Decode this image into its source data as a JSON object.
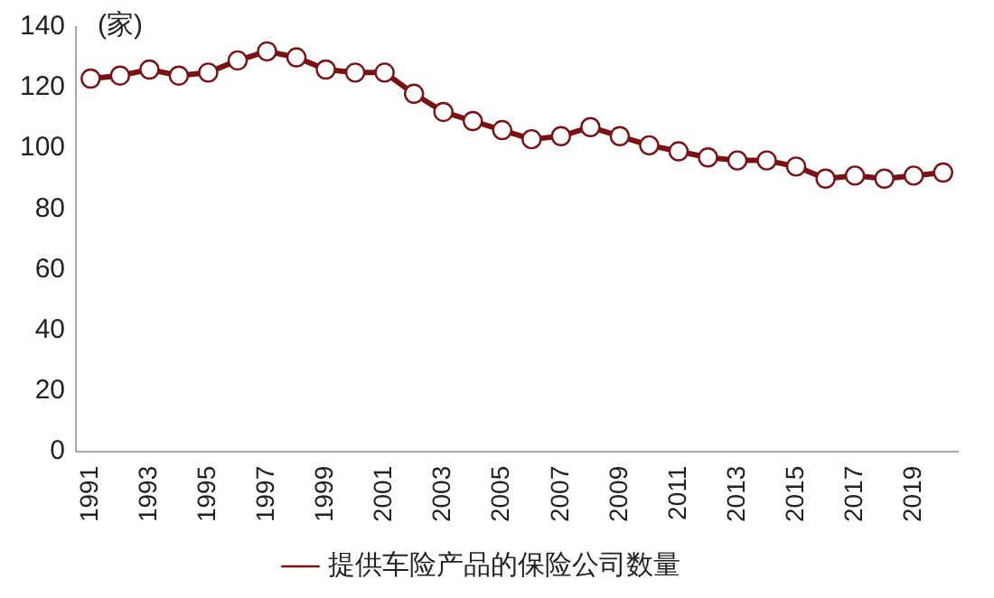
{
  "chart_data": {
    "type": "line",
    "ylabel": "(家)",
    "categories": [
      "1991",
      null,
      "1993",
      null,
      "1995",
      null,
      "1997",
      null,
      "1999",
      null,
      "2001",
      null,
      "2003",
      null,
      "2005",
      null,
      "2007",
      null,
      "2009",
      null,
      "2011",
      null,
      "2013",
      null,
      "2015",
      null,
      "2017",
      null,
      "2019",
      null
    ],
    "series": [
      {
        "name": "提供车险产品的保险公司数量",
        "color": "#7b1113",
        "values": [
          123,
          124,
          126,
          124,
          125,
          129,
          132,
          130,
          126,
          125,
          125,
          118,
          112,
          109,
          106,
          103,
          104,
          107,
          104,
          101,
          99,
          97,
          96,
          96,
          94,
          90,
          91,
          90,
          91,
          92
        ]
      }
    ],
    "ylim": [
      0,
      140
    ],
    "yticks": [
      0,
      20,
      40,
      60,
      80,
      100,
      120,
      140
    ],
    "grid": false,
    "legend": "bottom",
    "marker": "circle",
    "line_style": "solid"
  }
}
